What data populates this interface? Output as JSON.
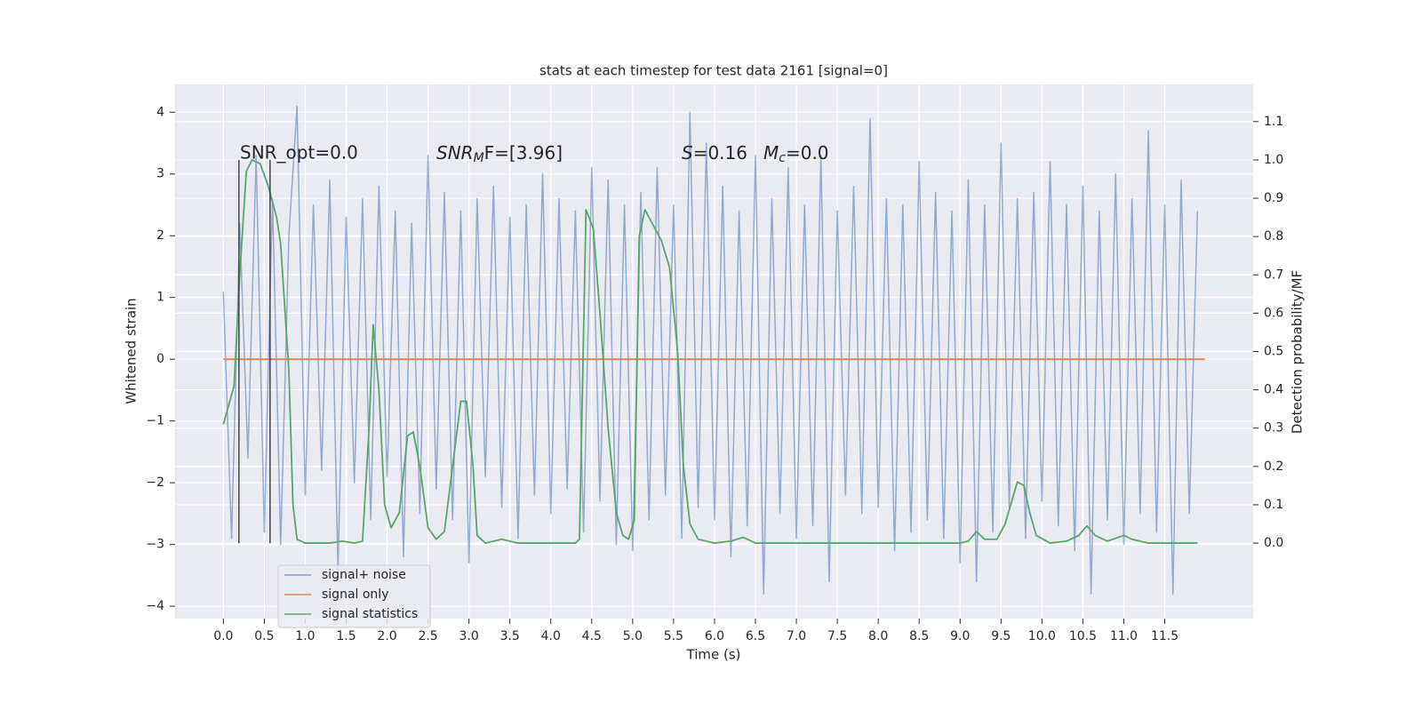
{
  "chart_data": {
    "type": "line",
    "title": "stats at each timestep for test data 2161 [signal=0]",
    "xlabel": "Time (s)",
    "ylabel": "Whitened strain",
    "y2label": "Detection probability/MF",
    "xlim": [
      -0.59,
      12.58
    ],
    "ylim": [
      -4.2,
      4.45
    ],
    "y2lim": [
      -0.197,
      1.197
    ],
    "xticks": [
      {
        "value": 0,
        "label": "0.0"
      },
      0.5,
      {
        "value": 1,
        "label": "1.0"
      },
      1.5,
      {
        "value": 2,
        "label": "2.0"
      },
      2.5,
      {
        "value": 3,
        "label": "3.0"
      },
      3.5,
      {
        "value": 4,
        "label": "4.0"
      },
      4.5,
      {
        "value": 5,
        "label": "5.0"
      },
      5.5,
      {
        "value": 6,
        "label": "6.0"
      },
      6.5,
      {
        "value": 7,
        "label": "7.0"
      },
      7.5,
      {
        "value": 8,
        "label": "8.0"
      },
      8.5,
      {
        "value": 9,
        "label": "9.0"
      },
      9.5,
      {
        "value": 10,
        "label": "10.0"
      },
      10.5,
      {
        "value": 11,
        "label": "11.0"
      },
      11.5
    ],
    "yticks": [
      {
        "value": -4,
        "label": "−4"
      },
      {
        "value": -3,
        "label": "−3"
      },
      {
        "value": -2,
        "label": "−2"
      },
      {
        "value": -1,
        "label": "−1"
      },
      0,
      1,
      2,
      3,
      4
    ],
    "y2ticks": [
      {
        "value": 0,
        "label": "0.0"
      },
      0.1,
      0.2,
      0.3,
      0.4,
      0.5,
      0.6,
      0.7,
      0.8,
      0.9,
      {
        "value": 1,
        "label": "1.0"
      },
      1.1
    ],
    "grid": true,
    "legend": "lower left",
    "annotations": [
      {
        "text": "SNR_opt=0.0"
      },
      {
        "main": "SNR",
        "sub": "M",
        "rest": "F=[3.96]"
      },
      {
        "main": "S",
        "rest": "=0.16"
      },
      {
        "main": "M",
        "sub": "c",
        "rest": "=0.0"
      }
    ],
    "vlines": {
      "x": [
        0.19,
        0.57
      ],
      "ymin": 0,
      "ymax": 1,
      "color": "#444444"
    },
    "series": [
      {
        "name": "signal+ noise",
        "color": "#4c72b0",
        "axis": "y",
        "x": [
          0,
          0.1,
          0.2,
          0.3,
          0.4,
          0.5,
          0.6,
          0.7,
          0.8,
          0.9,
          1,
          1.1,
          1.2,
          1.3,
          1.4,
          1.5,
          1.6,
          1.7,
          1.8,
          1.9,
          2,
          2.1,
          2.2,
          2.3,
          2.4,
          2.5,
          2.6,
          2.7,
          2.8,
          2.9,
          3,
          3.1,
          3.2,
          3.3,
          3.4,
          3.5,
          3.6,
          3.7,
          3.8,
          3.9,
          4,
          4.1,
          4.2,
          4.3,
          4.4,
          4.5,
          4.6,
          4.7,
          4.8,
          4.9,
          5,
          5.1,
          5.2,
          5.3,
          5.4,
          5.5,
          5.6,
          5.7,
          5.8,
          5.9,
          6,
          6.1,
          6.2,
          6.3,
          6.4,
          6.5,
          6.6,
          6.7,
          6.8,
          6.9,
          7,
          7.1,
          7.2,
          7.3,
          7.4,
          7.5,
          7.6,
          7.7,
          7.8,
          7.9,
          8,
          8.1,
          8.2,
          8.3,
          8.4,
          8.5,
          8.6,
          8.7,
          8.8,
          8.9,
          9,
          9.1,
          9.2,
          9.3,
          9.4,
          9.5,
          9.6,
          9.7,
          9.8,
          9.9,
          10,
          10.1,
          10.2,
          10.3,
          10.4,
          10.5,
          10.6,
          10.7,
          10.8,
          10.9,
          11,
          11.1,
          11.2,
          11.3,
          11.4,
          11.5,
          11.6,
          11.7,
          11.8,
          11.9
        ],
        "values": [
          1.1,
          -2.9,
          2.2,
          -1.6,
          3.3,
          -2.8,
          2.6,
          -3.0,
          2.0,
          4.1,
          -2.2,
          2.5,
          -1.8,
          2.9,
          -3.4,
          2.3,
          -2.0,
          2.6,
          -2.6,
          2.8,
          -1.9,
          2.4,
          -3.2,
          2.2,
          -2.5,
          3.3,
          -2.1,
          2.7,
          -2.6,
          2.4,
          -3.3,
          2.6,
          -1.9,
          2.8,
          -2.4,
          2.3,
          -2.9,
          2.5,
          -2.2,
          3.0,
          -2.5,
          2.6,
          -2.1,
          2.4,
          -2.8,
          3.1,
          -2.3,
          2.9,
          -3.0,
          2.5,
          -3.1,
          2.7,
          -2.6,
          3.1,
          -2.2,
          2.5,
          -2.9,
          4.0,
          -2.4,
          3.5,
          -2.6,
          2.8,
          -3.2,
          2.4,
          -2.7,
          3.3,
          -3.8,
          2.6,
          -2.5,
          3.1,
          -2.9,
          2.5,
          -2.7,
          3.3,
          -3.6,
          2.4,
          -2.2,
          2.8,
          -2.5,
          3.9,
          -2.4,
          2.6,
          -3.1,
          2.5,
          -2.8,
          3.2,
          -2.6,
          2.7,
          -2.9,
          2.4,
          -3.3,
          2.9,
          -3.6,
          2.5,
          -2.8,
          3.5,
          -2.4,
          2.6,
          -2.9,
          2.7,
          -2.3,
          3.2,
          -2.7,
          2.5,
          -3.1,
          2.8,
          -3.8,
          2.4,
          -2.6,
          3.0,
          -3.0,
          2.6,
          -2.5,
          3.7,
          -2.8,
          2.5,
          -3.8,
          2.9,
          -2.5,
          2.4
        ]
      },
      {
        "name": "signal only",
        "color": "#dd8452",
        "axis": "y",
        "x": [
          0,
          11.99
        ],
        "values": [
          0,
          0
        ]
      },
      {
        "name": "signal statistics",
        "color": "#55a868",
        "axis": "y2",
        "x": [
          0,
          0.13,
          0.2,
          0.28,
          0.35,
          0.45,
          0.55,
          0.65,
          0.7,
          0.8,
          0.85,
          0.9,
          1.0,
          1.3,
          1.45,
          1.6,
          1.7,
          1.78,
          1.83,
          1.9,
          1.97,
          2.05,
          2.15,
          2.25,
          2.32,
          2.4,
          2.5,
          2.6,
          2.7,
          2.8,
          2.9,
          2.97,
          3.05,
          3.1,
          3.2,
          3.4,
          3.6,
          4.0,
          4.3,
          4.35,
          4.43,
          4.52,
          4.6,
          4.7,
          4.8,
          4.88,
          4.95,
          5.02,
          5.08,
          5.15,
          5.25,
          5.35,
          5.45,
          5.55,
          5.62,
          5.7,
          5.8,
          6.0,
          6.2,
          6.35,
          6.5,
          7.0,
          8.0,
          9.0,
          9.1,
          9.2,
          9.3,
          9.45,
          9.55,
          9.7,
          9.78,
          9.85,
          9.93,
          10.1,
          10.3,
          10.45,
          10.55,
          10.65,
          10.8,
          11.0,
          11.1,
          11.3,
          11.5,
          11.9
        ],
        "values": [
          0.31,
          0.41,
          0.7,
          0.97,
          1.0,
          0.99,
          0.93,
          0.85,
          0.78,
          0.45,
          0.1,
          0.01,
          0.0,
          0.0,
          0.005,
          0.0,
          0.005,
          0.3,
          0.57,
          0.4,
          0.1,
          0.04,
          0.08,
          0.28,
          0.29,
          0.2,
          0.04,
          0.01,
          0.03,
          0.2,
          0.37,
          0.37,
          0.2,
          0.02,
          0.0,
          0.01,
          0.0,
          0.0,
          0.0,
          0.01,
          0.87,
          0.82,
          0.6,
          0.3,
          0.08,
          0.02,
          0.01,
          0.06,
          0.8,
          0.87,
          0.83,
          0.79,
          0.72,
          0.5,
          0.2,
          0.05,
          0.01,
          0.0,
          0.005,
          0.015,
          0.0,
          0.0,
          0.0,
          0.0,
          0.005,
          0.03,
          0.01,
          0.01,
          0.05,
          0.16,
          0.15,
          0.08,
          0.02,
          0.0,
          0.005,
          0.02,
          0.045,
          0.02,
          0.005,
          0.02,
          0.01,
          0.0,
          0.0,
          0.0
        ]
      }
    ]
  }
}
